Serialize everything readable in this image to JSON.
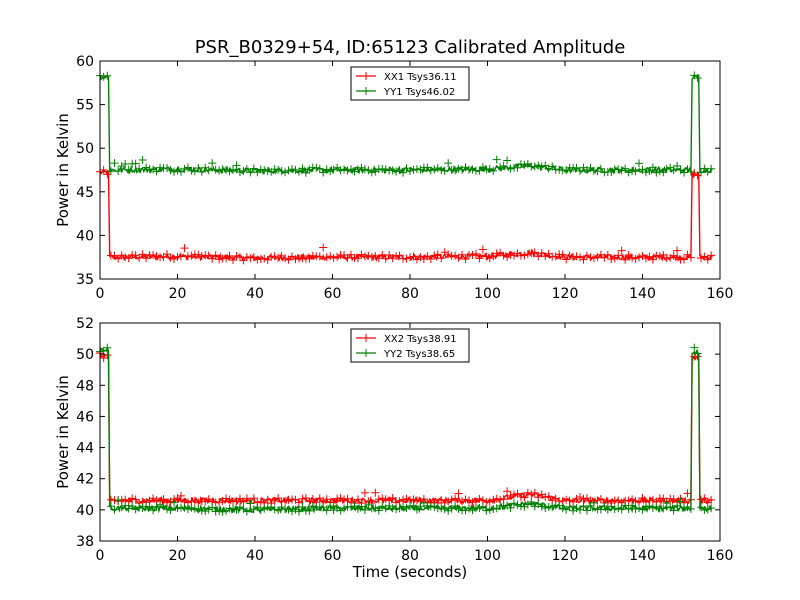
{
  "chart_data": [
    {
      "type": "line",
      "title": "PSR_B0329+54, ID:65123 Calibrated Amplitude",
      "xlabel": "",
      "ylabel": "Power in Kelvin",
      "xlim": [
        0,
        160
      ],
      "ylim": [
        35,
        60
      ],
      "xticks": [
        "0",
        "20",
        "40",
        "60",
        "80",
        "100",
        "120",
        "140",
        "160"
      ],
      "yticks": [
        "35",
        "40",
        "45",
        "50",
        "55",
        "60"
      ],
      "legend": "top-center",
      "marker": "+",
      "series": [
        {
          "name": "XX1 Tsys36.11",
          "color": "#ff0000",
          "x": [
            0,
            2.2,
            2.5,
            5,
            20,
            40,
            60,
            80,
            100,
            111,
            120,
            140,
            152.5,
            152.8,
            154.5,
            154.8,
            158
          ],
          "values": [
            47.2,
            47.2,
            37.5,
            37.5,
            37.6,
            37.4,
            37.5,
            37.5,
            37.6,
            38.0,
            37.5,
            37.5,
            37.5,
            47.0,
            47.0,
            37.5,
            37.5
          ]
        },
        {
          "name": "YY1 Tsys46.02",
          "color": "#008000",
          "x": [
            0,
            2.2,
            2.5,
            5,
            20,
            40,
            60,
            80,
            100,
            111,
            120,
            140,
            152.5,
            152.8,
            154.5,
            154.8,
            158
          ],
          "values": [
            58.2,
            58.2,
            47.5,
            47.5,
            47.6,
            47.4,
            47.5,
            47.5,
            47.6,
            48.0,
            47.5,
            47.5,
            47.5,
            58.1,
            58.1,
            47.5,
            47.5
          ]
        }
      ]
    },
    {
      "type": "line",
      "title": "",
      "xlabel": "Time (seconds)",
      "ylabel": "Power in Kelvin",
      "xlim": [
        0,
        160
      ],
      "ylim": [
        38,
        52
      ],
      "xticks": [
        "0",
        "20",
        "40",
        "60",
        "80",
        "100",
        "120",
        "140",
        "160"
      ],
      "yticks": [
        "38",
        "40",
        "42",
        "44",
        "46",
        "48",
        "50",
        "52"
      ],
      "legend": "top-center",
      "marker": "+",
      "series": [
        {
          "name": "XX2 Tsys38.91",
          "color": "#ff0000",
          "x": [
            0,
            2.2,
            2.5,
            5,
            20,
            40,
            60,
            80,
            100,
            111,
            120,
            140,
            152.5,
            152.8,
            154.5,
            154.8,
            158
          ],
          "values": [
            49.9,
            49.9,
            40.5,
            40.6,
            40.6,
            40.6,
            40.6,
            40.6,
            40.6,
            41.0,
            40.6,
            40.6,
            40.6,
            49.8,
            49.8,
            40.6,
            40.6
          ]
        },
        {
          "name": "YY2 Tsys38.65",
          "color": "#008000",
          "x": [
            0,
            2.2,
            2.5,
            5,
            20,
            40,
            60,
            80,
            100,
            111,
            120,
            140,
            152.5,
            152.8,
            154.5,
            154.8,
            158
          ],
          "values": [
            50.3,
            50.3,
            40.1,
            40.1,
            40.1,
            40.0,
            40.1,
            40.1,
            40.1,
            40.4,
            40.1,
            40.1,
            40.1,
            50.1,
            50.1,
            40.1,
            40.1
          ]
        }
      ]
    }
  ]
}
